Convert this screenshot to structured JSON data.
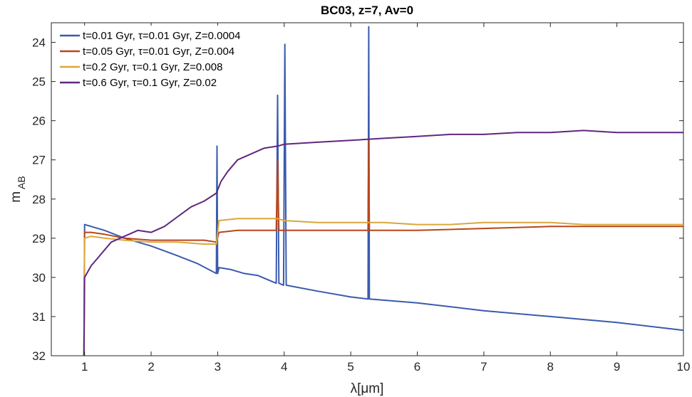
{
  "chart_data": {
    "type": "line",
    "title": "BC03, z=7, Av=0",
    "xlabel": "λ[μm]",
    "ylabel_main": "m",
    "ylabel_sub": "AB",
    "xlim": [
      0.5,
      10
    ],
    "ylim": [
      23.5,
      32
    ],
    "y_reversed": true,
    "xticks": [
      1,
      2,
      3,
      4,
      5,
      6,
      7,
      8,
      9,
      10
    ],
    "yticks": [
      24,
      25,
      26,
      27,
      28,
      29,
      30,
      31,
      32
    ],
    "grid": false,
    "legend_position": "top-left",
    "series": [
      {
        "name": "t=0.01 Gyr,    τ=0.01 Gyr, Z=0.0004",
        "color": "#3a5bad",
        "points": [
          [
            0.99,
            32.0
          ],
          [
            1.0,
            28.65
          ],
          [
            1.1,
            28.7
          ],
          [
            1.3,
            28.8
          ],
          [
            1.6,
            29.0
          ],
          [
            2.0,
            29.2
          ],
          [
            2.4,
            29.45
          ],
          [
            2.7,
            29.65
          ],
          [
            2.98,
            29.9
          ],
          [
            2.99,
            26.65
          ],
          [
            3.0,
            29.9
          ],
          [
            3.02,
            29.75
          ],
          [
            3.2,
            29.8
          ],
          [
            3.4,
            29.9
          ],
          [
            3.6,
            29.95
          ],
          [
            3.88,
            30.15
          ],
          [
            3.9,
            25.35
          ],
          [
            3.92,
            30.15
          ],
          [
            3.99,
            30.2
          ],
          [
            4.01,
            24.05
          ],
          [
            4.03,
            30.2
          ],
          [
            4.5,
            30.35
          ],
          [
            5.0,
            30.5
          ],
          [
            5.26,
            30.55
          ],
          [
            5.27,
            23.6
          ],
          [
            5.28,
            30.55
          ],
          [
            6.0,
            30.65
          ],
          [
            7.0,
            30.85
          ],
          [
            8.0,
            31.0
          ],
          [
            9.0,
            31.15
          ],
          [
            10.0,
            31.35
          ]
        ]
      },
      {
        "name": "t=0.05 Gyr,    τ=0.01 Gyr, Z=0.004",
        "color": "#b8461d",
        "points": [
          [
            0.99,
            32.0
          ],
          [
            1.0,
            28.85
          ],
          [
            1.1,
            28.85
          ],
          [
            1.3,
            28.9
          ],
          [
            1.6,
            29.0
          ],
          [
            2.0,
            29.05
          ],
          [
            2.4,
            29.05
          ],
          [
            2.8,
            29.05
          ],
          [
            2.98,
            29.1
          ],
          [
            3.02,
            28.85
          ],
          [
            3.3,
            28.8
          ],
          [
            3.6,
            28.8
          ],
          [
            3.88,
            28.8
          ],
          [
            3.9,
            27.0
          ],
          [
            3.92,
            28.8
          ],
          [
            4.0,
            28.8
          ],
          [
            4.5,
            28.8
          ],
          [
            5.0,
            28.8
          ],
          [
            5.26,
            28.8
          ],
          [
            5.27,
            26.5
          ],
          [
            5.28,
            28.8
          ],
          [
            6.0,
            28.8
          ],
          [
            7.0,
            28.75
          ],
          [
            8.0,
            28.7
          ],
          [
            9.0,
            28.7
          ],
          [
            10.0,
            28.7
          ]
        ]
      },
      {
        "name": "t=0.2 Gyr,    τ=0.1 Gyr, Z=0.008",
        "color": "#dba73b",
        "points": [
          [
            0.99,
            32.0
          ],
          [
            1.0,
            29.0
          ],
          [
            1.1,
            28.95
          ],
          [
            1.3,
            29.0
          ],
          [
            1.6,
            29.05
          ],
          [
            2.0,
            29.1
          ],
          [
            2.4,
            29.1
          ],
          [
            2.8,
            29.15
          ],
          [
            2.98,
            29.15
          ],
          [
            3.02,
            28.55
          ],
          [
            3.3,
            28.5
          ],
          [
            3.6,
            28.5
          ],
          [
            3.9,
            28.5
          ],
          [
            4.0,
            28.55
          ],
          [
            4.5,
            28.6
          ],
          [
            5.0,
            28.6
          ],
          [
            5.5,
            28.6
          ],
          [
            6.0,
            28.65
          ],
          [
            6.5,
            28.65
          ],
          [
            7.0,
            28.6
          ],
          [
            7.5,
            28.6
          ],
          [
            8.0,
            28.6
          ],
          [
            8.5,
            28.65
          ],
          [
            9.0,
            28.65
          ],
          [
            10.0,
            28.65
          ]
        ]
      },
      {
        "name": "t=0.6 Gyr,    τ=0.1 Gyr, Z=0.02",
        "color": "#60277f",
        "points": [
          [
            0.99,
            32.0
          ],
          [
            1.0,
            30.0
          ],
          [
            1.1,
            29.7
          ],
          [
            1.2,
            29.5
          ],
          [
            1.4,
            29.1
          ],
          [
            1.6,
            28.95
          ],
          [
            1.8,
            28.8
          ],
          [
            2.0,
            28.85
          ],
          [
            2.2,
            28.7
          ],
          [
            2.4,
            28.45
          ],
          [
            2.6,
            28.2
          ],
          [
            2.8,
            28.05
          ],
          [
            2.98,
            27.85
          ],
          [
            3.05,
            27.55
          ],
          [
            3.15,
            27.3
          ],
          [
            3.3,
            27.0
          ],
          [
            3.5,
            26.85
          ],
          [
            3.7,
            26.7
          ],
          [
            3.9,
            26.65
          ],
          [
            4.0,
            26.6
          ],
          [
            4.5,
            26.55
          ],
          [
            5.0,
            26.5
          ],
          [
            5.5,
            26.45
          ],
          [
            6.0,
            26.4
          ],
          [
            6.5,
            26.35
          ],
          [
            7.0,
            26.35
          ],
          [
            7.5,
            26.3
          ],
          [
            8.0,
            26.3
          ],
          [
            8.5,
            26.25
          ],
          [
            9.0,
            26.3
          ],
          [
            9.5,
            26.3
          ],
          [
            10.0,
            26.3
          ]
        ]
      }
    ]
  }
}
